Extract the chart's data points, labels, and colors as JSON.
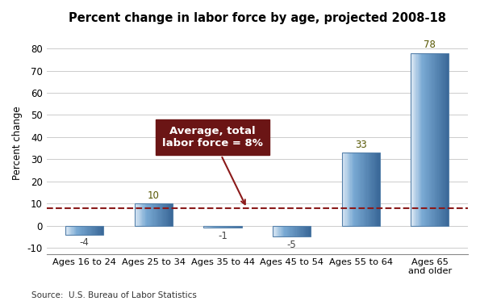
{
  "title": "Percent change in labor force by age, projected 2008-18",
  "categories": [
    "Ages 16 to 24",
    "Ages 25 to 34",
    "Ages 35 to 44",
    "Ages 45 to 54",
    "Ages 55 to 64",
    "Ages 65\nand older"
  ],
  "values": [
    -4,
    10,
    -1,
    -5,
    33,
    78
  ],
  "ylabel": "Percent change",
  "ylim": [
    -13,
    88
  ],
  "yticks": [
    -10,
    0,
    10,
    20,
    30,
    40,
    50,
    60,
    70,
    80
  ],
  "avg_line_y": 8,
  "avg_line_color": "#8b1a1a",
  "annotation_text": "Average, total\nlabor force = 8%",
  "annotation_box_color": "#6b1515",
  "annotation_text_color": "#ffffff",
  "source_text": "Source:  U.S. Bureau of Labor Statistics",
  "background_color": "#ffffff",
  "grid_color": "#cccccc",
  "bar_left_color": "#dce9f5",
  "bar_mid_color": "#7aaad4",
  "bar_right_color": "#3a6898",
  "bar_edge_color": "#5580aa"
}
